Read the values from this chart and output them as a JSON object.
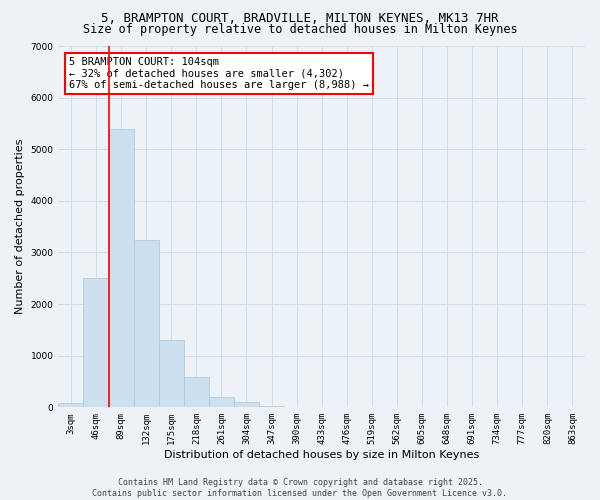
{
  "title_line1": "5, BRAMPTON COURT, BRADVILLE, MILTON KEYNES, MK13 7HR",
  "title_line2": "Size of property relative to detached houses in Milton Keynes",
  "xlabel": "Distribution of detached houses by size in Milton Keynes",
  "ylabel": "Number of detached properties",
  "categories": [
    "3sqm",
    "46sqm",
    "89sqm",
    "132sqm",
    "175sqm",
    "218sqm",
    "261sqm",
    "304sqm",
    "347sqm",
    "390sqm",
    "433sqm",
    "476sqm",
    "519sqm",
    "562sqm",
    "605sqm",
    "648sqm",
    "691sqm",
    "734sqm",
    "777sqm",
    "820sqm",
    "863sqm"
  ],
  "values": [
    80,
    2500,
    5400,
    3250,
    1300,
    580,
    200,
    95,
    30,
    12,
    5,
    2,
    1,
    0,
    0,
    0,
    0,
    0,
    0,
    0,
    0
  ],
  "bar_color": "#cce0f0",
  "bar_edgecolor": "#aac8e0",
  "grid_color": "#d0dce8",
  "background_color": "#edf2f7",
  "vline_color": "red",
  "vline_position": 1.5,
  "annotation_text": "5 BRAMPTON COURT: 104sqm\n← 32% of detached houses are smaller (4,302)\n67% of semi-detached houses are larger (8,988) →",
  "annotation_box_facecolor": "white",
  "annotation_box_edgecolor": "red",
  "ylim": [
    0,
    7000
  ],
  "yticks": [
    0,
    1000,
    2000,
    3000,
    4000,
    5000,
    6000,
    7000
  ],
  "footer_line1": "Contains HM Land Registry data © Crown copyright and database right 2025.",
  "footer_line2": "Contains public sector information licensed under the Open Government Licence v3.0.",
  "title_fontsize": 9,
  "axis_label_fontsize": 8,
  "tick_fontsize": 6.5,
  "annotation_fontsize": 7.5,
  "footer_fontsize": 6
}
